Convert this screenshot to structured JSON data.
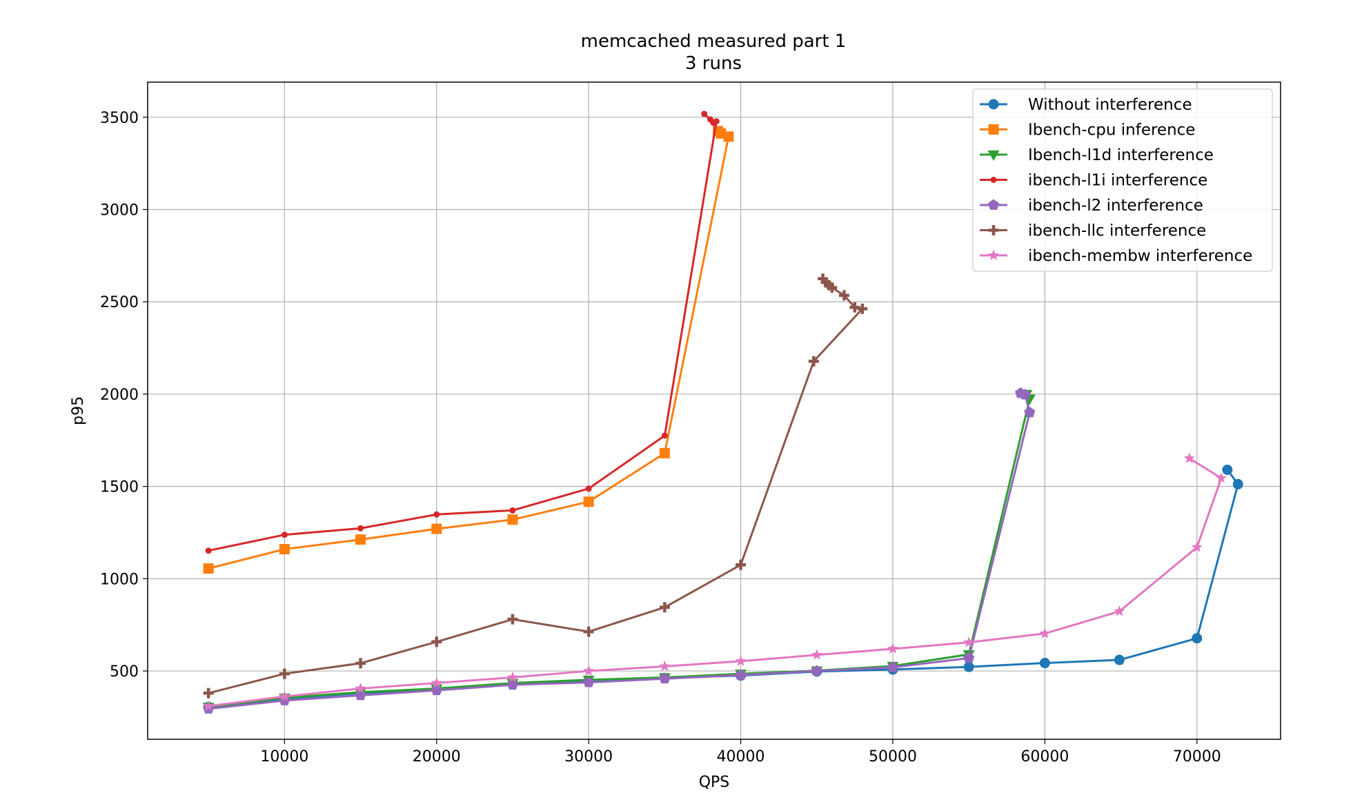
{
  "chart_data": {
    "type": "line",
    "title": "memcached measured part 1",
    "subtitle": "3 runs",
    "xlabel": "QPS",
    "ylabel": "p95",
    "xlim": [
      1000,
      75500
    ],
    "ylim": [
      130,
      3690
    ],
    "xticks": [
      10000,
      20000,
      30000,
      40000,
      50000,
      60000,
      70000
    ],
    "yticks": [
      500,
      1000,
      1500,
      2000,
      2500,
      3000,
      3500
    ],
    "grid": true,
    "legend_position": "top-right",
    "series": [
      {
        "name": "Without interference",
        "color": "#1f77b4",
        "marker": "circle",
        "x": [
          5000,
          10000,
          15000,
          20000,
          25000,
          30000,
          35000,
          40000,
          45000,
          50000,
          55000,
          60000,
          64900,
          70000,
          72700,
          72000
        ],
        "y": [
          305,
          350,
          380,
          400,
          430,
          445,
          462,
          475,
          497,
          508,
          522,
          543,
          560,
          677,
          1512,
          1590
        ]
      },
      {
        "name": "Ibench-cpu inference",
        "color": "#ff7f0e",
        "marker": "square",
        "x": [
          5000,
          10000,
          15000,
          20000,
          25000,
          30000,
          35000,
          39200,
          38700,
          38500
        ],
        "y": [
          1055,
          1160,
          1212,
          1270,
          1320,
          1417,
          1680,
          3395,
          3412,
          3425
        ]
      },
      {
        "name": "Ibench-l1d interference",
        "color": "#2ca02c",
        "marker": "triangle-down",
        "x": [
          5000,
          10000,
          15000,
          20000,
          25000,
          30000,
          35000,
          40000,
          45000,
          50000,
          55000,
          59000,
          58800
        ],
        "y": [
          305,
          355,
          385,
          405,
          435,
          452,
          465,
          485,
          502,
          527,
          590,
          1975,
          2000
        ]
      },
      {
        "name": "ibench-l1i interference",
        "color": "#d62728",
        "marker": "dot",
        "x": [
          5000,
          10000,
          15000,
          20000,
          25000,
          30000,
          35000,
          38400,
          38200,
          38000,
          37600
        ],
        "y": [
          1152,
          1238,
          1273,
          1348,
          1370,
          1488,
          1775,
          3478,
          3470,
          3488,
          3518
        ]
      },
      {
        "name": "ibench-l2 interference",
        "color": "#9467bd",
        "marker": "pentagon",
        "x": [
          5000,
          10000,
          15000,
          20000,
          25000,
          30000,
          35000,
          40000,
          45000,
          50000,
          55000,
          59000,
          58700,
          58400
        ],
        "y": [
          295,
          340,
          368,
          395,
          425,
          438,
          458,
          478,
          500,
          520,
          570,
          1900,
          1997,
          2005
        ]
      },
      {
        "name": "ibench-llc interference",
        "color": "#8c564b",
        "marker": "plus",
        "x": [
          5000,
          10000,
          15000,
          20000,
          25000,
          30000,
          35000,
          40000,
          44800,
          48000,
          47500,
          46800,
          46000,
          45800,
          45600,
          45400
        ],
        "y": [
          380,
          485,
          542,
          658,
          780,
          713,
          845,
          1075,
          2178,
          2462,
          2470,
          2535,
          2577,
          2590,
          2605,
          2625
        ]
      },
      {
        "name": "ibench-membw interference",
        "color": "#e377c2",
        "marker": "star",
        "x": [
          5000,
          10000,
          15000,
          20000,
          25000,
          30000,
          35000,
          40000,
          45000,
          50000,
          55000,
          60000,
          64900,
          70000,
          71600,
          69500
        ],
        "y": [
          310,
          362,
          405,
          435,
          465,
          500,
          525,
          553,
          587,
          620,
          655,
          703,
          823,
          1170,
          1545,
          1652
        ]
      }
    ]
  }
}
